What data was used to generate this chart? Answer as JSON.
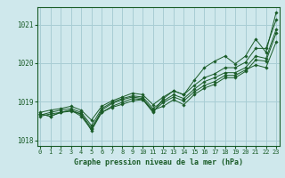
{
  "xlabel": "Graphe pression niveau de la mer (hPa)",
  "background_color": "#cfe8ec",
  "grid_color": "#a8cdd4",
  "line_color": "#1a5c28",
  "ylim": [
    1017.85,
    1021.45
  ],
  "xlim": [
    -0.3,
    23.3
  ],
  "yticks": [
    1018,
    1019,
    1020,
    1021
  ],
  "xticks": [
    0,
    1,
    2,
    3,
    4,
    5,
    6,
    7,
    8,
    9,
    10,
    11,
    12,
    13,
    14,
    15,
    16,
    17,
    18,
    19,
    20,
    21,
    22,
    23
  ],
  "series": [
    [
      1018.62,
      1018.68,
      1018.72,
      1018.75,
      1018.68,
      1018.32,
      1018.72,
      1018.85,
      1018.93,
      1019.02,
      1019.05,
      1018.78,
      1018.88,
      1019.05,
      1018.92,
      1019.18,
      1019.35,
      1019.45,
      1019.62,
      1019.62,
      1019.78,
      1020.08,
      1020.05,
      1020.78
    ],
    [
      1018.65,
      1018.72,
      1018.78,
      1018.82,
      1018.72,
      1018.38,
      1018.82,
      1018.98,
      1019.08,
      1019.15,
      1019.12,
      1018.82,
      1019.02,
      1019.18,
      1019.08,
      1019.32,
      1019.52,
      1019.62,
      1019.75,
      1019.75,
      1019.88,
      1020.18,
      1020.12,
      1020.88
    ],
    [
      1018.68,
      1018.62,
      1018.72,
      1018.78,
      1018.62,
      1018.28,
      1018.78,
      1018.95,
      1019.05,
      1019.12,
      1019.08,
      1018.75,
      1018.98,
      1019.12,
      1019.02,
      1019.25,
      1019.42,
      1019.52,
      1019.68,
      1019.68,
      1019.82,
      1019.95,
      1019.88,
      1020.55
    ],
    [
      1018.72,
      1018.78,
      1018.82,
      1018.88,
      1018.78,
      1018.52,
      1018.88,
      1019.02,
      1019.12,
      1019.22,
      1019.18,
      1018.92,
      1019.12,
      1019.28,
      1019.18,
      1019.42,
      1019.62,
      1019.72,
      1019.88,
      1019.88,
      1020.02,
      1020.38,
      1020.38,
      1021.12
    ],
    [
      1018.68,
      1018.62,
      1018.72,
      1018.78,
      1018.68,
      1018.25,
      1018.72,
      1018.88,
      1018.98,
      1019.08,
      1019.05,
      1018.72,
      1019.08,
      1019.28,
      1019.18,
      1019.55,
      1019.88,
      1020.05,
      1020.18,
      1019.98,
      1020.18,
      1020.62,
      1020.28,
      1021.32
    ]
  ]
}
